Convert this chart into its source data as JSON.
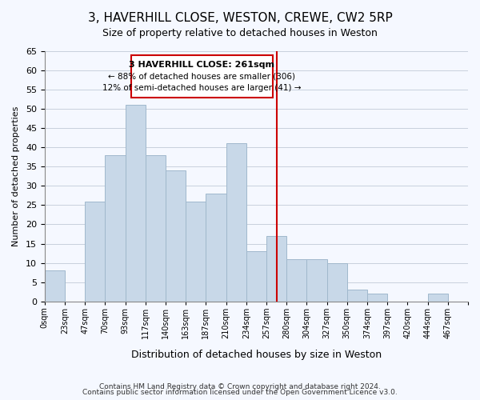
{
  "title": "3, HAVERHILL CLOSE, WESTON, CREWE, CW2 5RP",
  "subtitle": "Size of property relative to detached houses in Weston",
  "xlabel": "Distribution of detached houses by size in Weston",
  "ylabel": "Number of detached properties",
  "bar_labels": [
    "0sqm",
    "23sqm",
    "47sqm",
    "70sqm",
    "93sqm",
    "117sqm",
    "140sqm",
    "163sqm",
    "187sqm",
    "210sqm",
    "234sqm",
    "257sqm",
    "280sqm",
    "304sqm",
    "327sqm",
    "350sqm",
    "374sqm",
    "397sqm",
    "420sqm",
    "444sqm",
    "467sqm"
  ],
  "bar_heights": [
    8,
    0,
    26,
    38,
    51,
    38,
    34,
    26,
    28,
    41,
    13,
    17,
    11,
    11,
    10,
    3,
    2,
    0,
    0,
    2,
    0
  ],
  "bar_color": "#c8d8e8",
  "bar_edgecolor": "#a0b8cc",
  "vline_x": 11.5,
  "vline_color": "#cc0000",
  "ylim": [
    0,
    65
  ],
  "yticks": [
    0,
    5,
    10,
    15,
    20,
    25,
    30,
    35,
    40,
    45,
    50,
    55,
    60,
    65
  ],
  "annotation_title": "3 HAVERHILL CLOSE: 261sqm",
  "annotation_line1": "← 88% of detached houses are smaller (306)",
  "annotation_line2": "12% of semi-detached houses are larger (41) →",
  "footer1": "Contains HM Land Registry data © Crown copyright and database right 2024.",
  "footer2": "Contains public sector information licensed under the Open Government Licence v3.0.",
  "bg_color": "#f5f8ff",
  "grid_color": "#c8d0dc"
}
